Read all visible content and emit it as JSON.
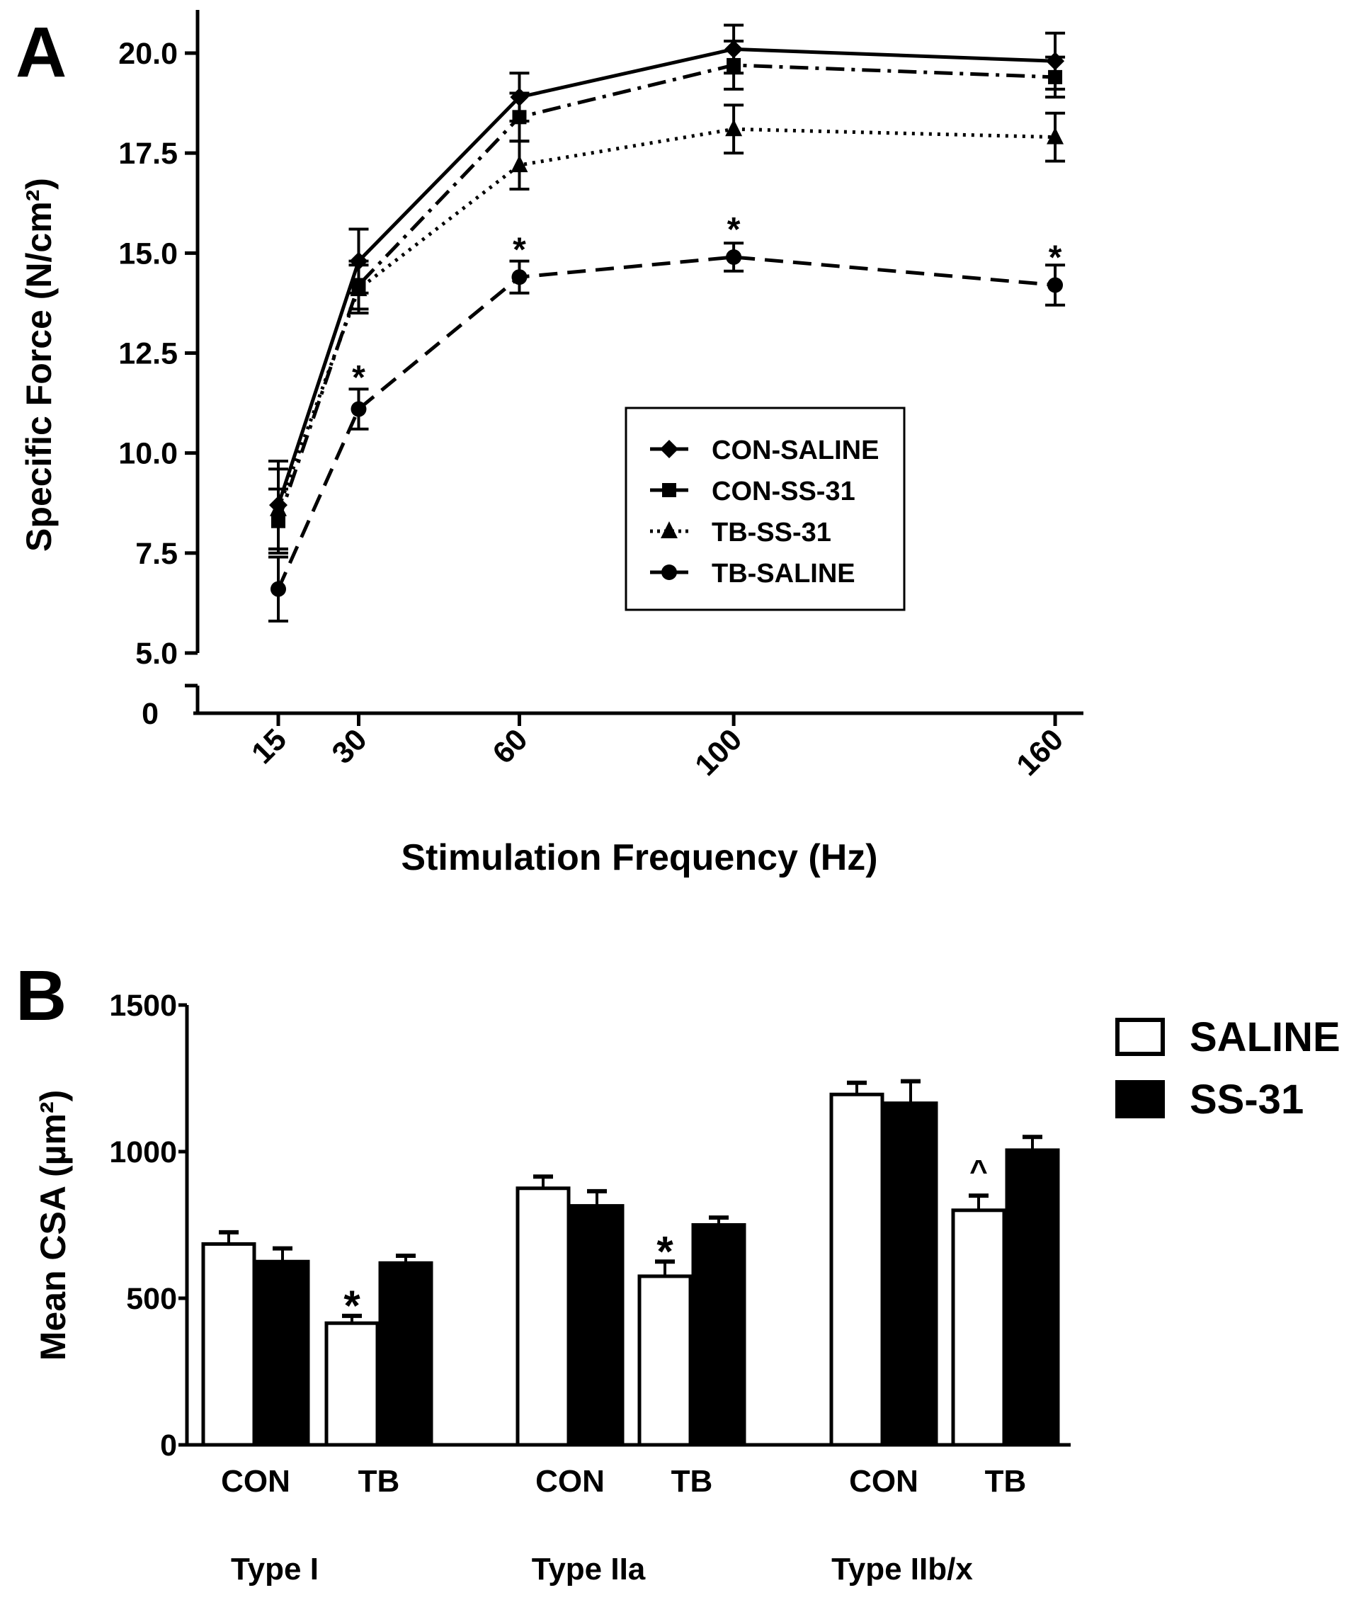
{
  "chart_data": [
    {
      "panel_label": "A",
      "type": "line",
      "xlabel": "Stimulation Frequency (Hz)",
      "ylabel": "Specific Force (N/cm²)",
      "x": [
        15,
        30,
        60,
        100,
        160
      ],
      "x_tick_labels": [
        "15",
        "30",
        "60",
        "100",
        "160"
      ],
      "ylim": [
        5.0,
        20.0
      ],
      "y_ticks": [
        "5.0",
        "7.5",
        "10.0",
        "12.5",
        "15.0",
        "17.5",
        "20.0"
      ],
      "y_break_label": "0",
      "legend_position": "center-right",
      "grid": false,
      "series": [
        {
          "name": "CON-SALINE",
          "marker": "diamond",
          "dash": "solid",
          "values": [
            8.7,
            14.8,
            18.9,
            20.1,
            19.8
          ],
          "errors": [
            1.1,
            0.8,
            0.6,
            0.6,
            0.7
          ]
        },
        {
          "name": "CON-SS-31",
          "marker": "square",
          "dash": "dashdot",
          "values": [
            8.3,
            14.2,
            18.4,
            19.7,
            19.4
          ],
          "errors": [
            0.8,
            0.6,
            0.6,
            0.6,
            0.5
          ]
        },
        {
          "name": "TB-SS-31",
          "marker": "triangle",
          "dash": "dotted",
          "values": [
            8.6,
            14.1,
            17.2,
            18.1,
            17.9
          ],
          "errors": [
            1.0,
            0.6,
            0.6,
            0.6,
            0.6
          ]
        },
        {
          "name": "TB-SALINE",
          "marker": "circle",
          "dash": "dashed",
          "values": [
            6.6,
            11.1,
            14.4,
            14.9,
            14.2
          ],
          "errors": [
            0.8,
            0.5,
            0.4,
            0.35,
            0.5
          ]
        }
      ],
      "annotations": [
        {
          "text": "*",
          "x": 30,
          "y": 12.1
        },
        {
          "text": "*",
          "x": 60,
          "y": 15.3
        },
        {
          "text": "*",
          "x": 100,
          "y": 15.8
        },
        {
          "text": "*",
          "x": 160,
          "y": 15.1
        }
      ]
    },
    {
      "panel_label": "B",
      "type": "bar",
      "ylabel": "Mean CSA (µm²)",
      "ylim": [
        0,
        1500
      ],
      "y_ticks": [
        "0",
        "500",
        "1000",
        "1500"
      ],
      "groups": [
        "Type I",
        "Type IIa",
        "Type IIb/x"
      ],
      "categories": [
        "CON",
        "TB",
        "CON",
        "TB",
        "CON",
        "TB"
      ],
      "legend_position": "top-right",
      "grid": false,
      "series": [
        {
          "name": "SALINE",
          "fill": "#ffffff",
          "values": [
            685,
            415,
            875,
            575,
            1195,
            800
          ],
          "errors": [
            40,
            25,
            40,
            50,
            40,
            50
          ]
        },
        {
          "name": "SS-31",
          "fill": "#000000",
          "values": [
            625,
            620,
            815,
            750,
            1165,
            1005
          ],
          "errors": [
            45,
            25,
            50,
            25,
            75,
            45
          ]
        }
      ],
      "annotations": [
        {
          "text": "*",
          "category_index": 1,
          "series": "SALINE"
        },
        {
          "text": "*",
          "category_index": 3,
          "series": "SALINE"
        },
        {
          "text": "^",
          "category_index": 5,
          "series": "SALINE"
        }
      ]
    }
  ]
}
